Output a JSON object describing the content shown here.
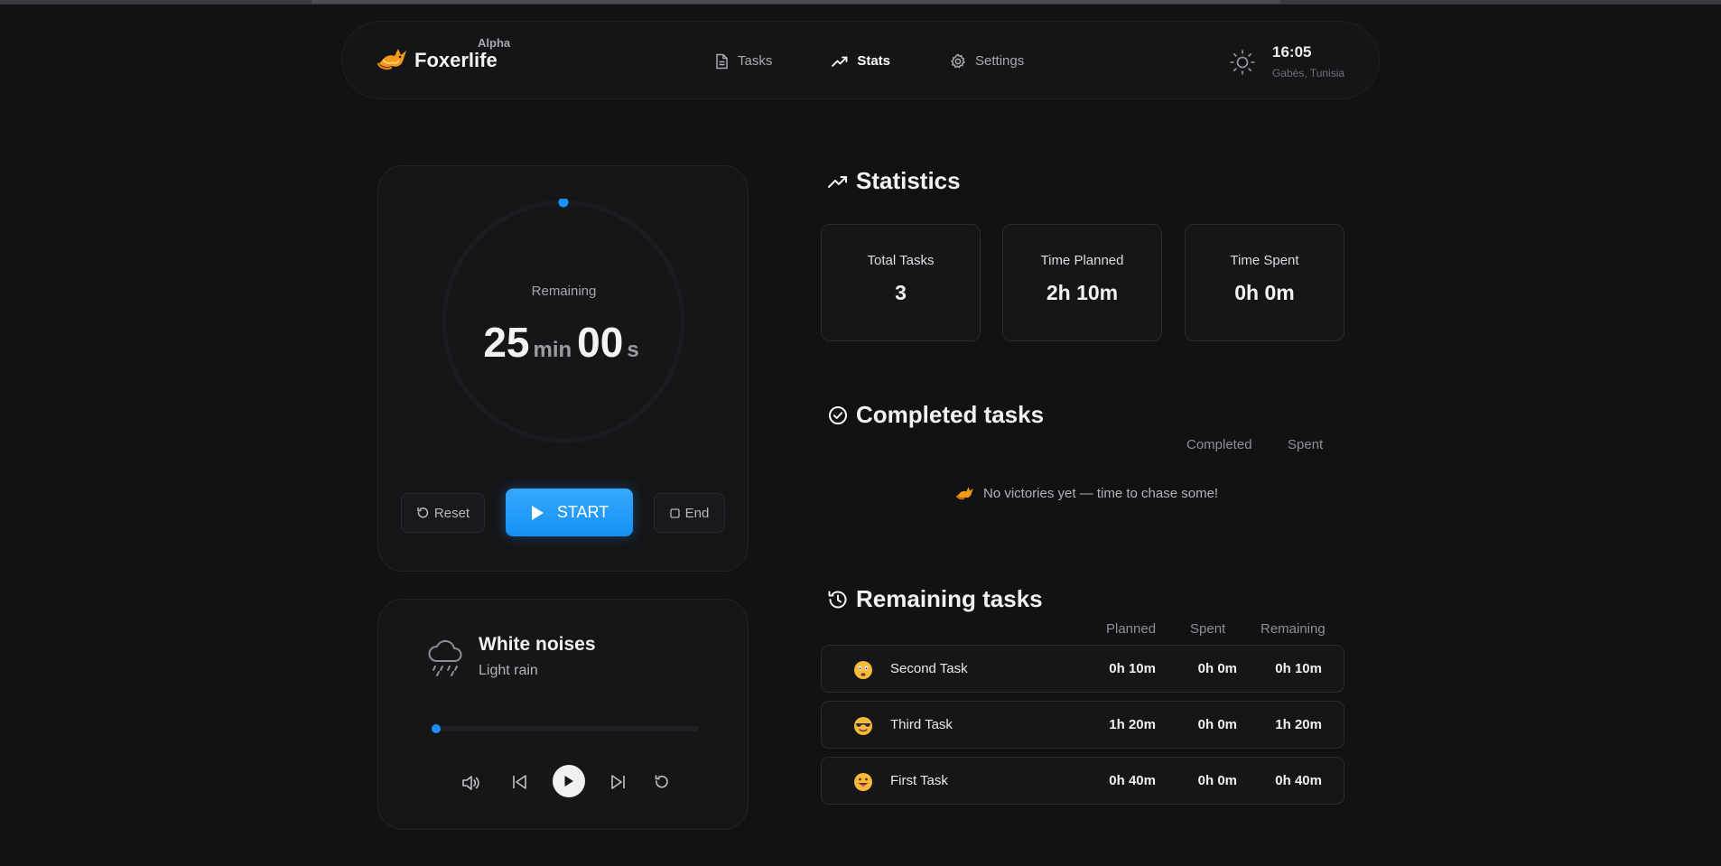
{
  "header": {
    "app_name": "Foxerlife",
    "badge": "Alpha",
    "nav": [
      {
        "label": "Tasks",
        "icon": "document-icon",
        "active": false
      },
      {
        "label": "Stats",
        "icon": "trend-up-icon",
        "active": true
      },
      {
        "label": "Settings",
        "icon": "gear-icon",
        "active": false
      }
    ],
    "theme_icon": "sun-icon",
    "clock": {
      "time": "16:05",
      "location": "Gabès, Tunisia"
    }
  },
  "timer": {
    "label": "Remaining",
    "minutes": "25",
    "minutes_unit": "min",
    "seconds": "00",
    "seconds_unit": "s",
    "progress": 0.0,
    "reset_label": "Reset",
    "start_label": "START",
    "end_label": "End",
    "accent": "#1e90ff"
  },
  "noise": {
    "title": "White noises",
    "subtitle": "Light rain",
    "progress": 0.0
  },
  "stats": {
    "title": "Statistics",
    "cards": [
      {
        "label": "Total Tasks",
        "value": "3"
      },
      {
        "label": "Time Planned",
        "value": "2h 10m"
      },
      {
        "label": "Time Spent",
        "value": "0h 0m"
      }
    ]
  },
  "completed": {
    "title": "Completed tasks",
    "col_completed": "Completed",
    "col_spent": "Spent",
    "empty_message": "No victories yet — time to chase some!"
  },
  "remaining": {
    "title": "Remaining tasks",
    "col_planned": "Planned",
    "col_spent": "Spent",
    "col_remaining": "Remaining",
    "rows": [
      {
        "name": "Second Task",
        "emoji": "worried-face-icon",
        "planned": "0h 10m",
        "spent": "0h 0m",
        "remaining": "0h 10m"
      },
      {
        "name": "Third Task",
        "emoji": "sunglasses-face-icon",
        "planned": "1h 20m",
        "spent": "0h 0m",
        "remaining": "1h 20m"
      },
      {
        "name": "First Task",
        "emoji": "tongue-face-icon",
        "planned": "0h 40m",
        "spent": "0h 0m",
        "remaining": "0h 40m"
      }
    ]
  }
}
